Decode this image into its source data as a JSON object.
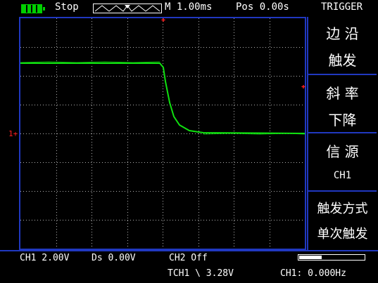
{
  "status": {
    "run_state": "Stop",
    "timebase": "M 1.00ms",
    "position": "Pos 0.00s",
    "panel_title": "TRIGGER"
  },
  "menu": {
    "type": {
      "line1": "边 沿",
      "line2": "触发"
    },
    "slope": {
      "line1": "斜 率",
      "line2": "下降"
    },
    "source": {
      "line1": "信 源",
      "line2": "CH1"
    },
    "mode": {
      "line1": "触发方式",
      "line2": "单次触发"
    }
  },
  "bottom": {
    "ch1_scale": "CH1 2.00V",
    "delay": "Ds  0.00V",
    "ch2_state": "CH2 Off",
    "trigger_level": "TCH1 \\  3.28V",
    "frequency": "CH1:  0.000Hz",
    "memory_fraction": 0.35
  },
  "markers": {
    "ch1_marker": "1+"
  },
  "colors": {
    "grid_border": "#2038c0",
    "waveform": "#10e010",
    "marker": "#ff2020",
    "text": "#ffffff"
  }
}
